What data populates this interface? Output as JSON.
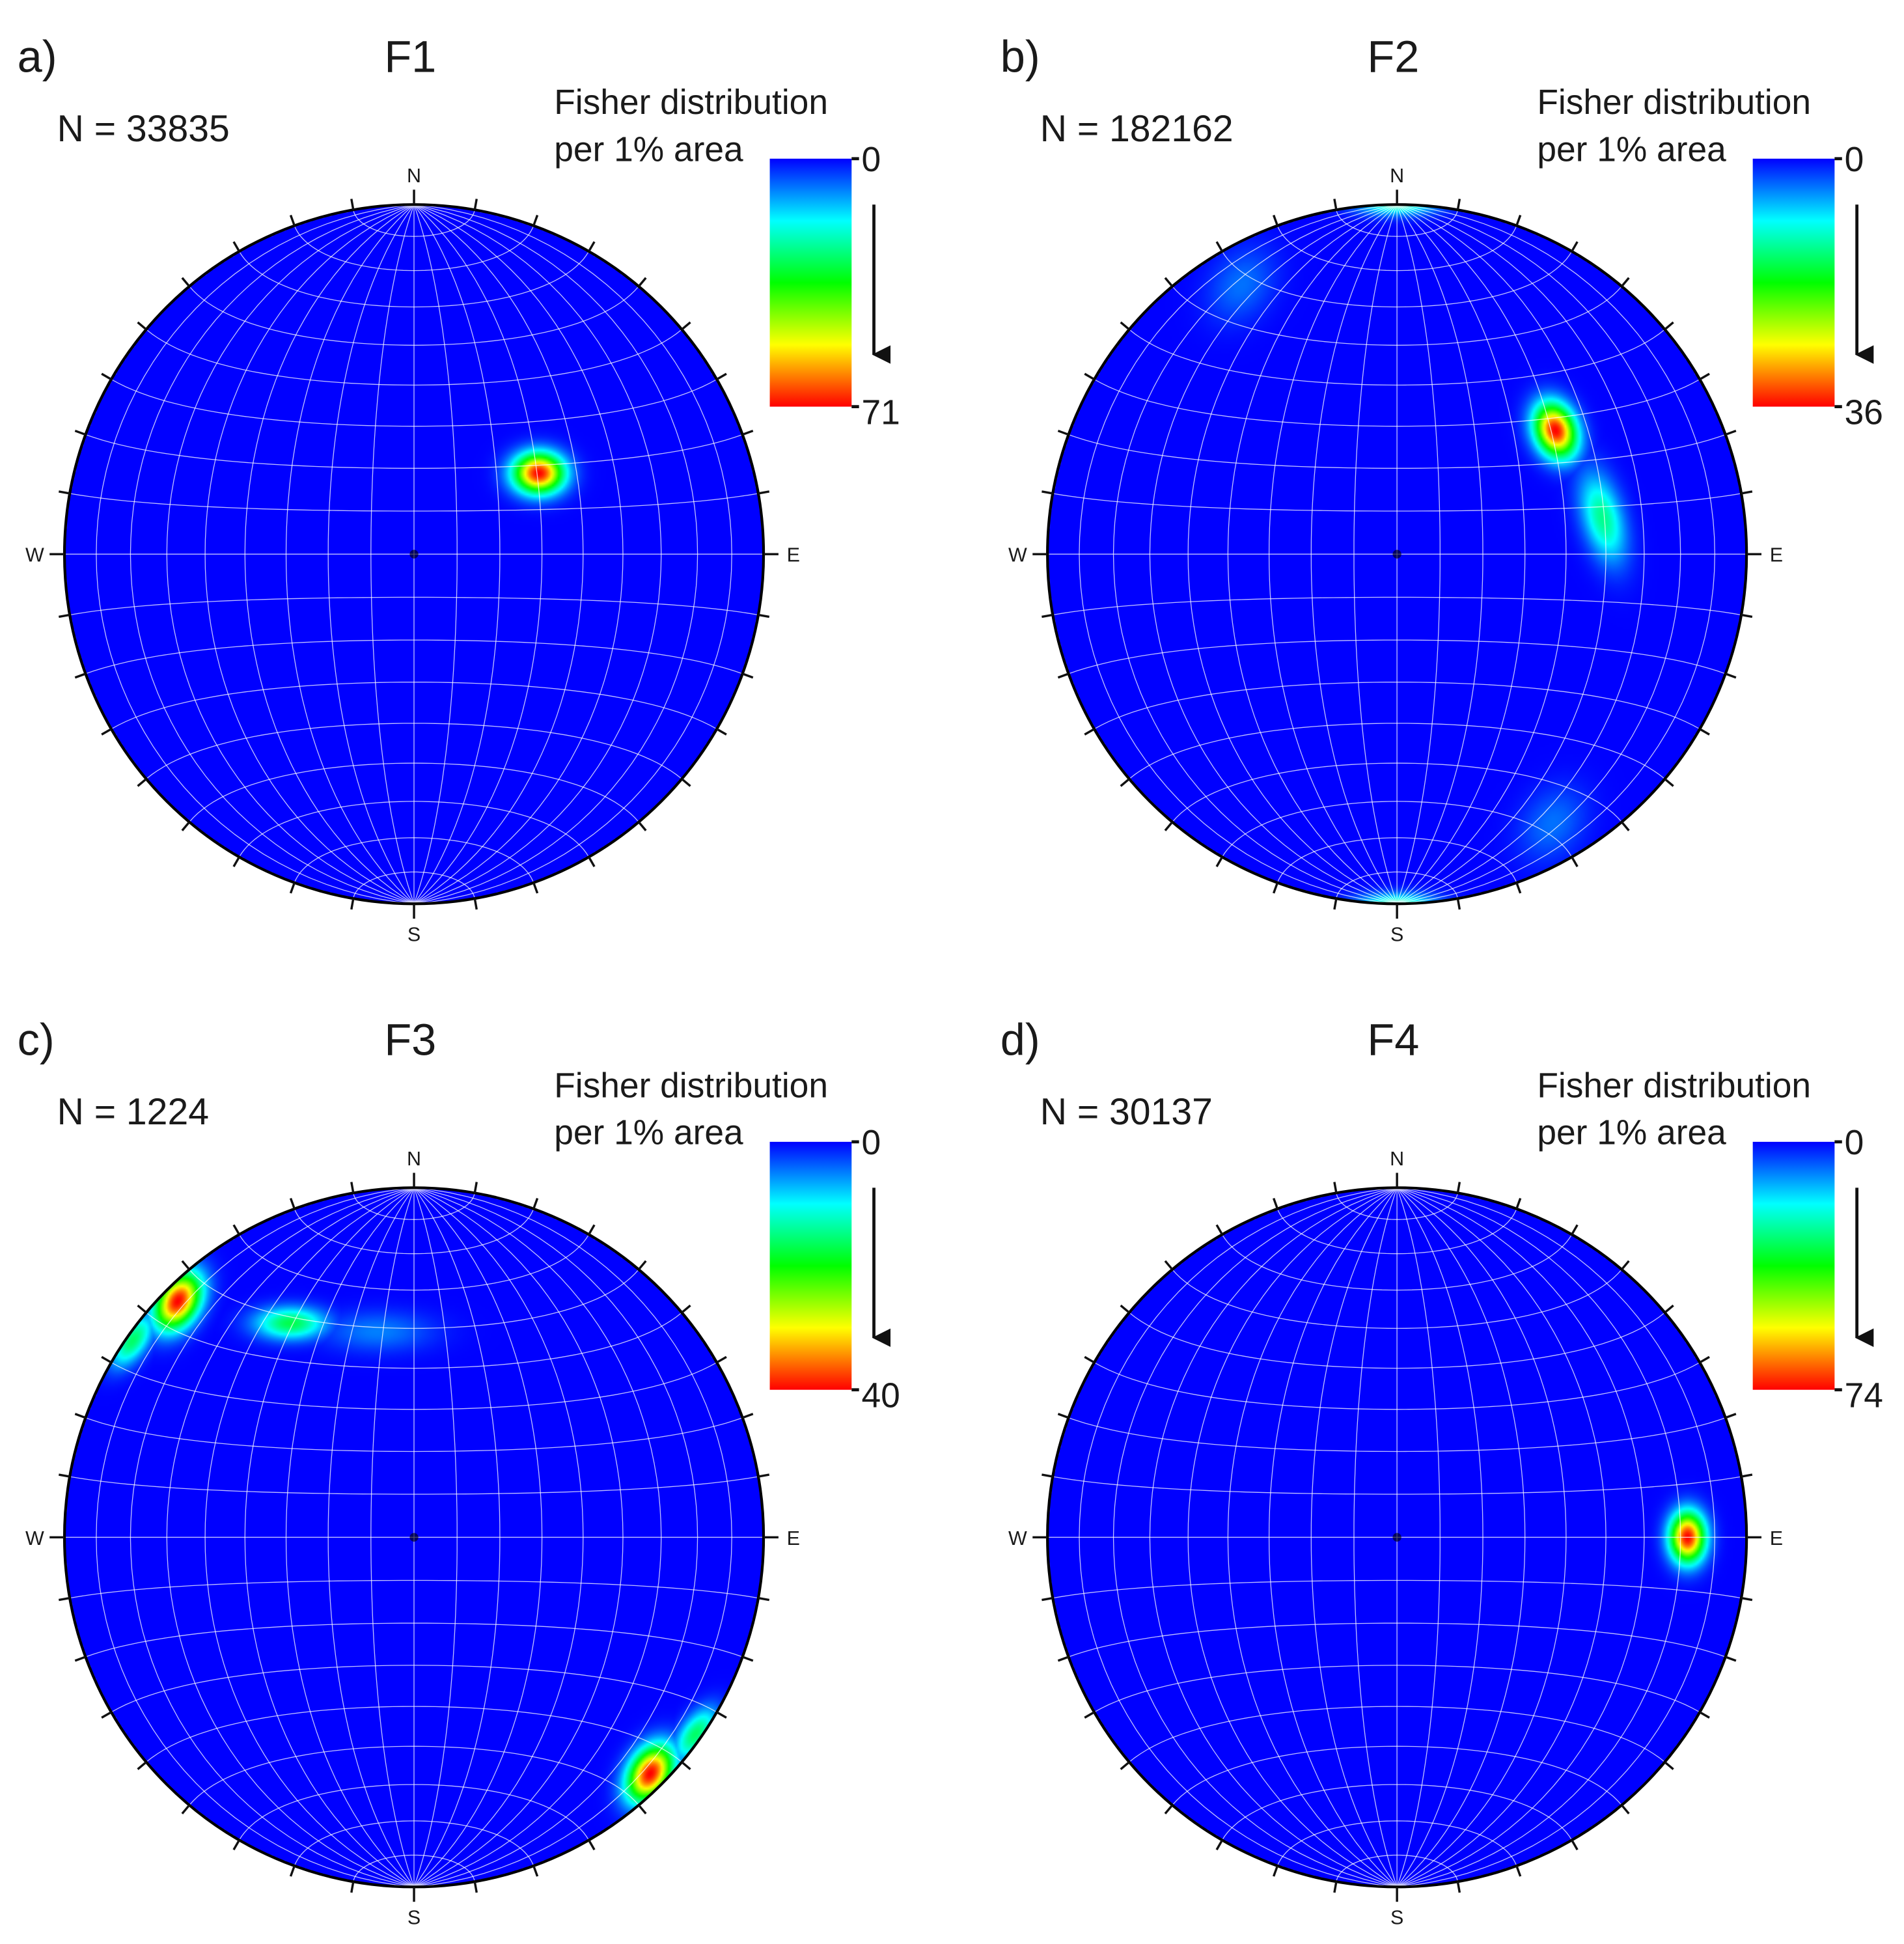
{
  "figure": {
    "panel_count": 4
  },
  "chart_data": [
    {
      "type": "heatmap",
      "panel_label": "a)",
      "title": "F1",
      "n_text": "N = 33835",
      "legend": {
        "title_line1": "Fisher distribution",
        "title_line2": "per 1% area",
        "min_label": "0",
        "max_label": "71",
        "min": 0,
        "max": 71
      },
      "compass": {
        "north": "N",
        "south": "S",
        "east": "E",
        "west": "W"
      },
      "projection": "stereonet (equal-area, lower hemisphere)",
      "concentrations": [
        {
          "trend": 57,
          "plunge": 55,
          "peak": 71,
          "spread": [
            0.05,
            0.04
          ],
          "rotation": 0
        }
      ]
    },
    {
      "type": "heatmap",
      "panel_label": "b)",
      "title": "F2",
      "n_text": "N = 182162",
      "legend": {
        "title_line1": "Fisher distribution",
        "title_line2": "per 1% area",
        "min_label": "0",
        "max_label": "36",
        "min": 0,
        "max": 36
      },
      "compass": {
        "north": "N",
        "south": "S",
        "east": "E",
        "west": "W"
      },
      "projection": "stereonet (equal-area, lower hemisphere)",
      "concentrations": [
        {
          "trend": 52,
          "plunge": 42,
          "peak": 36,
          "spread": [
            0.04,
            0.055
          ],
          "rotation": -20
        },
        {
          "trend": 80,
          "plunge": 40,
          "peak": 13,
          "spread": [
            0.04,
            0.09
          ],
          "rotation": -15
        },
        {
          "trend": 0,
          "plunge": 0,
          "peak": 12,
          "spread": [
            0.06,
            0.022
          ],
          "rotation": 0
        },
        {
          "trend": 180,
          "plunge": 0,
          "peak": 12,
          "spread": [
            0.08,
            0.022
          ],
          "rotation": 0
        },
        {
          "trend": 150,
          "plunge": 12,
          "peak": 4,
          "spread": [
            0.06,
            0.08
          ],
          "rotation": 35
        }
      ]
    },
    {
      "type": "heatmap",
      "panel_label": "c)",
      "title": "F3",
      "n_text": "N = 1224",
      "legend": {
        "title_line1": "Fisher distribution",
        "title_line2": "per 1% area",
        "min_label": "0",
        "max_label": "40",
        "min": 0,
        "max": 40
      },
      "compass": {
        "north": "N",
        "south": "S",
        "east": "E",
        "west": "W"
      },
      "projection": "stereonet (equal-area, lower hemisphere)",
      "concentrations": [
        {
          "trend": 135,
          "plunge": 5,
          "peak": 40,
          "spread": [
            0.04,
            0.06
          ],
          "rotation": 30
        },
        {
          "trend": 305,
          "plunge": 2,
          "peak": 16,
          "spread": [
            0.03,
            0.06
          ],
          "rotation": 35
        },
        {
          "trend": 330,
          "plunge": 30,
          "peak": 17,
          "spread": [
            0.07,
            0.032
          ],
          "rotation": 0
        },
        {
          "trend": 350,
          "plunge": 40,
          "peak": 5,
          "spread": [
            0.11,
            0.04
          ],
          "rotation": 0
        }
      ]
    },
    {
      "type": "heatmap",
      "panel_label": "d)",
      "title": "F4",
      "n_text": "N = 30137",
      "legend": {
        "title_line1": "Fisher distribution",
        "title_line2": "per 1% area",
        "min_label": "0",
        "max_label": "74",
        "min": 0,
        "max": 74
      },
      "compass": {
        "north": "N",
        "south": "S",
        "east": "E",
        "west": "W"
      },
      "projection": "stereonet (equal-area, lower hemisphere)",
      "concentrations": [
        {
          "trend": 90,
          "plunge": 18,
          "peak": 74,
          "spread": [
            0.035,
            0.05
          ],
          "rotation": 0
        }
      ]
    }
  ],
  "colors": {
    "background": "#0000ff",
    "grid": "#ffffff",
    "outline": "#000000",
    "colormap": [
      "#0000ff",
      "#00ffff",
      "#00ff00",
      "#ffff00",
      "#ff0000"
    ]
  }
}
